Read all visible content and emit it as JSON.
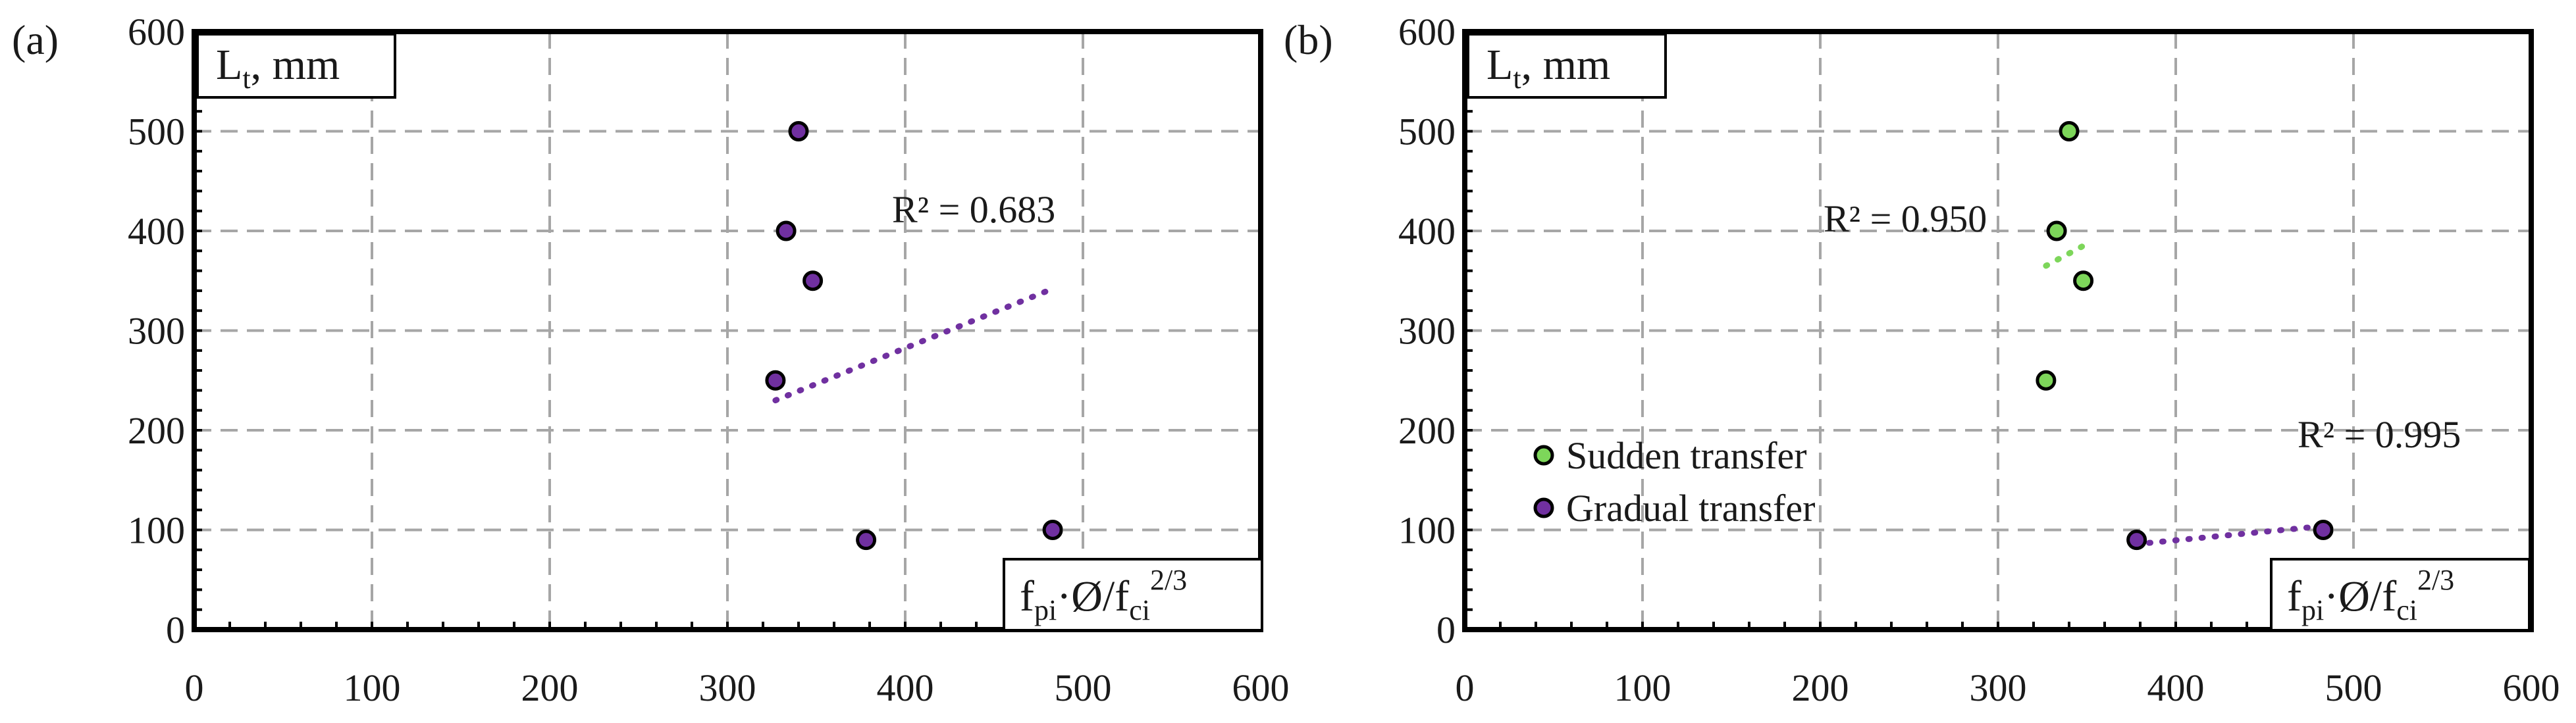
{
  "chart_data": [
    {
      "panel_label": "(a)",
      "type": "scatter",
      "y_label": {
        "main": "L",
        "sub": "t",
        "rest": ", mm"
      },
      "x_label": {
        "f": "f",
        "pi": "pi",
        "mid": "·Ø/f",
        "ci": "ci",
        "exp": "2/3"
      },
      "xlim": [
        0,
        600
      ],
      "ylim": [
        0,
        600
      ],
      "x_ticks": [
        "0",
        "100",
        "200",
        "300",
        "400",
        "500",
        "600"
      ],
      "y_ticks": [
        "0",
        "100",
        "200",
        "300",
        "400",
        "500",
        "600"
      ],
      "grid": true,
      "series": [
        {
          "name": "Gradual transfer",
          "color": "#7030a0",
          "points": [
            [
              340,
              500
            ],
            [
              333,
              400
            ],
            [
              348,
              350
            ],
            [
              327,
              250
            ],
            [
              378,
              90
            ],
            [
              483,
              100
            ]
          ],
          "trend": {
            "type": "linear",
            "x_from": 327,
            "x_to": 483,
            "y_from": 230,
            "y_to": 342,
            "r2_label": "R² = 0.683"
          }
        }
      ]
    },
    {
      "panel_label": "(b)",
      "type": "scatter",
      "y_label": {
        "main": "L",
        "sub": "t",
        "rest": ", mm"
      },
      "x_label": {
        "f": "f",
        "pi": "pi",
        "mid": "·Ø/f",
        "ci": "ci",
        "exp": "2/3"
      },
      "xlim": [
        0,
        600
      ],
      "ylim": [
        0,
        600
      ],
      "x_ticks": [
        "0",
        "100",
        "200",
        "300",
        "400",
        "500",
        "600"
      ],
      "y_ticks": [
        "0",
        "100",
        "200",
        "300",
        "400",
        "500",
        "600"
      ],
      "grid": true,
      "legend": {
        "position": "lower-left",
        "entries": [
          "Sudden transfer",
          "Gradual transfer"
        ]
      },
      "series": [
        {
          "name": "Sudden transfer",
          "color": "#7dd65a",
          "points": [
            [
              340,
              500
            ],
            [
              333,
              400
            ],
            [
              348,
              350
            ],
            [
              327,
              250
            ]
          ],
          "trend": {
            "type": "linear",
            "x_from": 327,
            "x_to": 348,
            "y_from": 365,
            "y_to": 385,
            "r2_label": "R² = 0.950"
          }
        },
        {
          "name": "Gradual transfer",
          "color": "#7030a0",
          "points": [
            [
              378,
              90
            ],
            [
              483,
              100
            ]
          ],
          "trend": {
            "type": "linear",
            "x_from": 385,
            "x_to": 478,
            "y_from": 87,
            "y_to": 103,
            "r2_label": "R² = 0.995"
          }
        }
      ]
    }
  ]
}
